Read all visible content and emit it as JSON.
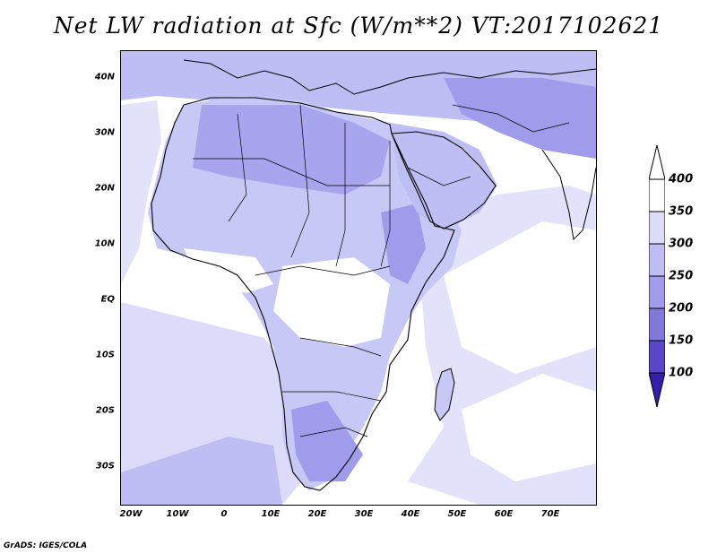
{
  "title": "Net LW radiation at Sfc (W/m**2) VT:2017102621",
  "map": {
    "lat_ticks": [
      "40N",
      "30N",
      "20N",
      "10N",
      "EQ",
      "10S",
      "20S",
      "30S"
    ],
    "lat_values": [
      40,
      30,
      20,
      10,
      0,
      -10,
      -20,
      -30
    ],
    "lon_ticks": [
      "20W",
      "10W",
      "0",
      "10E",
      "20E",
      "30E",
      "40E",
      "50E",
      "60E",
      "70E"
    ],
    "lon_values": [
      -20,
      -10,
      0,
      10,
      20,
      30,
      40,
      50,
      60,
      70
    ],
    "lon_range": [
      -22,
      80
    ],
    "lat_range": [
      -37,
      44.5
    ]
  },
  "colorbar": {
    "labels": [
      "400",
      "350",
      "300",
      "250",
      "200",
      "150",
      "100"
    ],
    "colors": [
      "#ffffff",
      "#dcdcfa",
      "#bebef5",
      "#a09beb",
      "#8278dc",
      "#5a46c8",
      "#321eaa",
      "#1e0080"
    ]
  },
  "credit": "GrADS: IGES/COLA"
}
